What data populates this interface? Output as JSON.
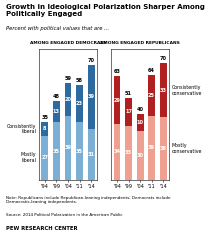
{
  "title": "Growth in Ideological Polarization Sharper Among\nPolitically Engaged",
  "subtitle": "Percent with political values that are ...",
  "note": "Note: Republicans include Republican-leaning independents; Democrats include\nDemocratic-leaning independents.",
  "source": "Source: 2014 Political Polarization in the American Public",
  "credit": "PEW RESEARCH CENTER",
  "chart_data": [
    {
      "type": "bar",
      "stacked": true,
      "data_labels": true,
      "tick_labels": "x",
      "grid": false,
      "title": "AMONG ENGAGED DEMOCRATS",
      "categories": [
        "'94",
        "'99",
        "'04",
        "'11",
        "'14"
      ],
      "series": [
        {
          "name": "Mostly\nliberal",
          "color": "#7bafd4",
          "values": [
            27,
            35,
            39,
            35,
            31
          ]
        },
        {
          "name": "Consistently\nliberal",
          "color": "#2d6a9f",
          "values": [
            8,
            13,
            20,
            23,
            39
          ]
        }
      ],
      "totals": [
        35,
        48,
        59,
        58,
        70
      ],
      "ylim": [
        0,
        80
      ]
    },
    {
      "type": "bar",
      "stacked": true,
      "data_labels": true,
      "tick_labels": "x",
      "grid": false,
      "title": "AMONG ENGAGED REPUBLICANS",
      "categories": [
        "'94",
        "'99",
        "'04",
        "'11",
        "'14"
      ],
      "series": [
        {
          "name": "Mostly\nconservative",
          "color": "#f0a090",
          "values": [
            34,
            33,
            30,
            39,
            38
          ]
        },
        {
          "name": "Consistently\nconservative",
          "color": "#b02020",
          "values": [
            29,
            17,
            10,
            25,
            33
          ]
        }
      ],
      "totals": [
        63,
        51,
        40,
        64,
        70
      ],
      "ylim": [
        0,
        80
      ]
    }
  ]
}
